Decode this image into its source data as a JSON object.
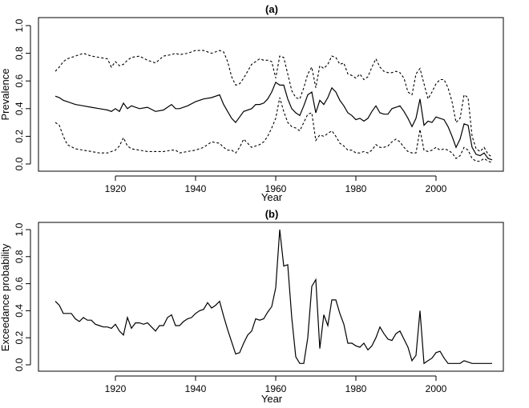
{
  "chart_data": [
    {
      "type": "line",
      "title": "(a)",
      "xlabel": "Year",
      "ylabel": "Prevalence",
      "xlim": [
        1905,
        2014
      ],
      "ylim": [
        0,
        1.0
      ],
      "xticks": [
        "1920",
        "1940",
        "1960",
        "1980",
        "2000"
      ],
      "yticks": [
        "0.0",
        "0.2",
        "0.4",
        "0.6",
        "0.8",
        "1.0"
      ],
      "grid": false,
      "series": [
        {
          "style": "solid",
          "x": [
            1905,
            1906,
            1907,
            1908,
            1910,
            1912,
            1914,
            1916,
            1918,
            1919,
            1920,
            1921,
            1922,
            1923,
            1924,
            1926,
            1928,
            1930,
            1932,
            1934,
            1935,
            1936,
            1938,
            1940,
            1942,
            1944,
            1946,
            1947,
            1948,
            1949,
            1950,
            1951,
            1952,
            1954,
            1955,
            1956,
            1957,
            1958,
            1959,
            1960,
            1961,
            1962,
            1963,
            1964,
            1965,
            1966,
            1967,
            1968,
            1969,
            1970,
            1971,
            1972,
            1973,
            1974,
            1975,
            1976,
            1977,
            1978,
            1979,
            1980,
            1981,
            1982,
            1983,
            1984,
            1985,
            1986,
            1987,
            1988,
            1989,
            1990,
            1991,
            1992,
            1993,
            1994,
            1995,
            1996,
            1997,
            1998,
            1999,
            2000,
            2001,
            2002,
            2003,
            2004,
            2005,
            2006,
            2007,
            2008,
            2009,
            2010,
            2011,
            2012,
            2013,
            2014
          ],
          "y": [
            0.49,
            0.48,
            0.46,
            0.45,
            0.43,
            0.42,
            0.41,
            0.4,
            0.39,
            0.38,
            0.4,
            0.38,
            0.44,
            0.4,
            0.42,
            0.4,
            0.41,
            0.38,
            0.39,
            0.43,
            0.4,
            0.4,
            0.42,
            0.45,
            0.47,
            0.48,
            0.5,
            0.43,
            0.38,
            0.33,
            0.3,
            0.34,
            0.38,
            0.4,
            0.43,
            0.43,
            0.44,
            0.47,
            0.52,
            0.59,
            0.57,
            0.57,
            0.47,
            0.4,
            0.37,
            0.35,
            0.42,
            0.5,
            0.52,
            0.37,
            0.46,
            0.43,
            0.48,
            0.55,
            0.52,
            0.46,
            0.42,
            0.37,
            0.35,
            0.32,
            0.33,
            0.31,
            0.33,
            0.38,
            0.42,
            0.37,
            0.36,
            0.36,
            0.4,
            0.41,
            0.42,
            0.38,
            0.33,
            0.27,
            0.33,
            0.47,
            0.28,
            0.31,
            0.3,
            0.34,
            0.33,
            0.32,
            0.27,
            0.2,
            0.12,
            0.18,
            0.29,
            0.28,
            0.12,
            0.07,
            0.06,
            0.08,
            0.04,
            0.03
          ]
        },
        {
          "style": "dashed",
          "x": [
            1905,
            1906,
            1907,
            1908,
            1910,
            1912,
            1914,
            1916,
            1918,
            1919,
            1920,
            1921,
            1922,
            1923,
            1924,
            1926,
            1928,
            1930,
            1932,
            1934,
            1935,
            1936,
            1938,
            1940,
            1942,
            1944,
            1946,
            1947,
            1948,
            1949,
            1950,
            1951,
            1952,
            1954,
            1955,
            1956,
            1957,
            1958,
            1959,
            1960,
            1961,
            1962,
            1963,
            1964,
            1965,
            1966,
            1967,
            1968,
            1969,
            1970,
            1971,
            1972,
            1973,
            1974,
            1975,
            1976,
            1977,
            1978,
            1979,
            1980,
            1981,
            1982,
            1983,
            1984,
            1985,
            1986,
            1987,
            1988,
            1989,
            1990,
            1991,
            1992,
            1993,
            1994,
            1995,
            1996,
            1997,
            1998,
            1999,
            2000,
            2001,
            2002,
            2003,
            2004,
            2005,
            2006,
            2007,
            2008,
            2009,
            2010,
            2011,
            2012,
            2013,
            2014
          ],
          "y": [
            0.67,
            0.7,
            0.74,
            0.76,
            0.78,
            0.8,
            0.78,
            0.77,
            0.76,
            0.7,
            0.74,
            0.71,
            0.72,
            0.75,
            0.77,
            0.78,
            0.75,
            0.73,
            0.78,
            0.79,
            0.8,
            0.79,
            0.8,
            0.82,
            0.82,
            0.8,
            0.82,
            0.81,
            0.74,
            0.63,
            0.57,
            0.58,
            0.62,
            0.72,
            0.74,
            0.76,
            0.75,
            0.75,
            0.74,
            0.62,
            0.78,
            0.77,
            0.65,
            0.53,
            0.48,
            0.47,
            0.55,
            0.65,
            0.7,
            0.55,
            0.71,
            0.69,
            0.72,
            0.78,
            0.77,
            0.72,
            0.73,
            0.65,
            0.64,
            0.62,
            0.65,
            0.61,
            0.63,
            0.7,
            0.76,
            0.7,
            0.67,
            0.66,
            0.66,
            0.67,
            0.66,
            0.62,
            0.52,
            0.5,
            0.65,
            0.69,
            0.58,
            0.47,
            0.52,
            0.58,
            0.61,
            0.61,
            0.55,
            0.45,
            0.3,
            0.33,
            0.5,
            0.48,
            0.2,
            0.11,
            0.09,
            0.12,
            0.07,
            0.05
          ]
        },
        {
          "style": "dashed",
          "x": [
            1905,
            1906,
            1907,
            1908,
            1910,
            1912,
            1914,
            1916,
            1918,
            1919,
            1920,
            1921,
            1922,
            1923,
            1924,
            1926,
            1928,
            1930,
            1932,
            1934,
            1935,
            1936,
            1938,
            1940,
            1942,
            1944,
            1946,
            1947,
            1948,
            1949,
            1950,
            1951,
            1952,
            1954,
            1955,
            1956,
            1957,
            1958,
            1959,
            1960,
            1961,
            1962,
            1963,
            1964,
            1965,
            1966,
            1967,
            1968,
            1969,
            1970,
            1971,
            1972,
            1973,
            1974,
            1975,
            1976,
            1977,
            1978,
            1979,
            1980,
            1981,
            1982,
            1983,
            1984,
            1985,
            1986,
            1987,
            1988,
            1989,
            1990,
            1991,
            1992,
            1993,
            1994,
            1995,
            1996,
            1997,
            1998,
            1999,
            2000,
            2001,
            2002,
            2003,
            2004,
            2005,
            2006,
            2007,
            2008,
            2009,
            2010,
            2011,
            2012,
            2013,
            2014
          ],
          "y": [
            0.3,
            0.28,
            0.2,
            0.14,
            0.11,
            0.1,
            0.09,
            0.08,
            0.08,
            0.09,
            0.1,
            0.13,
            0.19,
            0.13,
            0.11,
            0.1,
            0.09,
            0.09,
            0.09,
            0.1,
            0.1,
            0.08,
            0.09,
            0.1,
            0.12,
            0.16,
            0.15,
            0.12,
            0.1,
            0.1,
            0.08,
            0.12,
            0.18,
            0.12,
            0.13,
            0.14,
            0.16,
            0.2,
            0.26,
            0.33,
            0.48,
            0.38,
            0.3,
            0.27,
            0.26,
            0.24,
            0.3,
            0.36,
            0.37,
            0.17,
            0.21,
            0.2,
            0.22,
            0.24,
            0.2,
            0.15,
            0.13,
            0.1,
            0.1,
            0.08,
            0.08,
            0.09,
            0.08,
            0.1,
            0.14,
            0.12,
            0.12,
            0.13,
            0.16,
            0.18,
            0.16,
            0.12,
            0.09,
            0.08,
            0.08,
            0.25,
            0.1,
            0.09,
            0.1,
            0.12,
            0.1,
            0.11,
            0.1,
            0.08,
            0.04,
            0.06,
            0.12,
            0.1,
            0.04,
            0.02,
            0.02,
            0.04,
            0.02,
            0.01
          ]
        }
      ]
    },
    {
      "type": "line",
      "title": "(b)",
      "xlabel": "Year",
      "ylabel": "Exceedance probability",
      "xlim": [
        1905,
        2014
      ],
      "ylim": [
        0,
        1.0
      ],
      "xticks": [
        "1920",
        "1940",
        "1960",
        "1980",
        "2000"
      ],
      "yticks": [
        "0.0",
        "0.2",
        "0.4",
        "0.6",
        "0.8",
        "1.0"
      ],
      "grid": false,
      "series": [
        {
          "style": "solid",
          "x": [
            1905,
            1906,
            1907,
            1908,
            1909,
            1910,
            1911,
            1912,
            1913,
            1914,
            1915,
            1916,
            1917,
            1918,
            1919,
            1920,
            1921,
            1922,
            1923,
            1924,
            1925,
            1926,
            1927,
            1928,
            1929,
            1930,
            1931,
            1932,
            1933,
            1934,
            1935,
            1936,
            1937,
            1938,
            1939,
            1940,
            1941,
            1942,
            1943,
            1944,
            1945,
            1946,
            1947,
            1948,
            1949,
            1950,
            1951,
            1952,
            1953,
            1954,
            1955,
            1956,
            1957,
            1958,
            1959,
            1960,
            1961,
            1962,
            1963,
            1964,
            1965,
            1966,
            1967,
            1968,
            1969,
            1970,
            1971,
            1972,
            1973,
            1974,
            1975,
            1976,
            1977,
            1978,
            1979,
            1980,
            1981,
            1982,
            1983,
            1984,
            1985,
            1986,
            1987,
            1988,
            1989,
            1990,
            1991,
            1992,
            1993,
            1994,
            1995,
            1996,
            1997,
            1998,
            1999,
            2000,
            2001,
            2002,
            2003,
            2004,
            2005,
            2006,
            2007,
            2008,
            2009,
            2010,
            2011,
            2012,
            2013,
            2014
          ],
          "y": [
            0.47,
            0.44,
            0.38,
            0.38,
            0.38,
            0.34,
            0.32,
            0.35,
            0.33,
            0.33,
            0.3,
            0.29,
            0.28,
            0.28,
            0.27,
            0.3,
            0.25,
            0.22,
            0.35,
            0.27,
            0.31,
            0.31,
            0.3,
            0.31,
            0.28,
            0.25,
            0.29,
            0.29,
            0.35,
            0.37,
            0.29,
            0.29,
            0.32,
            0.34,
            0.35,
            0.38,
            0.4,
            0.41,
            0.46,
            0.42,
            0.44,
            0.47,
            0.36,
            0.26,
            0.17,
            0.08,
            0.09,
            0.16,
            0.22,
            0.25,
            0.34,
            0.33,
            0.34,
            0.39,
            0.43,
            0.57,
            1.0,
            0.73,
            0.74,
            0.35,
            0.06,
            0.01,
            0.01,
            0.2,
            0.58,
            0.63,
            0.12,
            0.37,
            0.29,
            0.48,
            0.48,
            0.38,
            0.3,
            0.16,
            0.16,
            0.14,
            0.13,
            0.16,
            0.11,
            0.14,
            0.2,
            0.28,
            0.23,
            0.19,
            0.18,
            0.23,
            0.25,
            0.19,
            0.13,
            0.03,
            0.07,
            0.4,
            0.01,
            0.03,
            0.05,
            0.09,
            0.1,
            0.05,
            0.01,
            0.01,
            0.01,
            0.01,
            0.03,
            0.02,
            0.01,
            0.01,
            0.01,
            0.01,
            0.01,
            0.01
          ]
        }
      ]
    }
  ]
}
